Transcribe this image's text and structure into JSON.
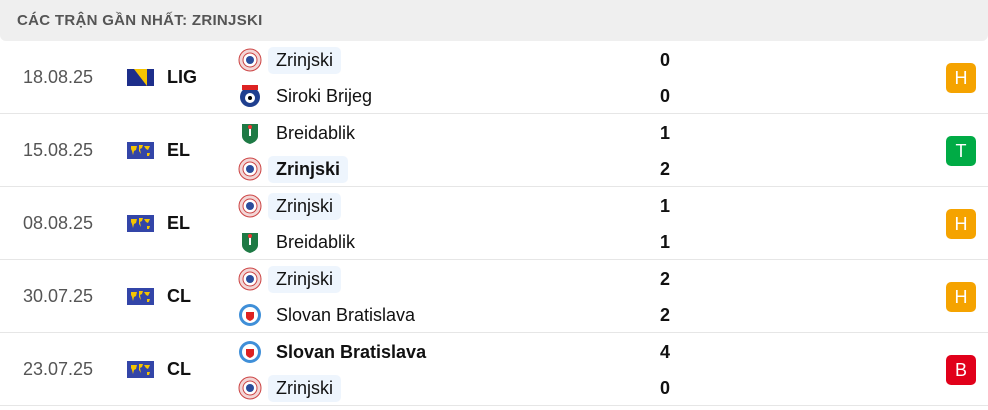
{
  "header": {
    "title": "CÁC TRẬN GẦN NHẤT: ZRINJSKI"
  },
  "colors": {
    "H": "#f5a300",
    "T": "#00ab45",
    "B": "#e1001a",
    "highlight": "#eef5fd"
  },
  "matches": [
    {
      "date": "18.08.25",
      "competition": "LIG",
      "flag": "bosnia-flag-icon",
      "home": {
        "name": "Zrinjski",
        "score": "0",
        "logo": "zrinjski-logo",
        "highlight": true,
        "bold": false
      },
      "away": {
        "name": "Siroki Brijeg",
        "score": "0",
        "logo": "siroki-brijeg-logo",
        "highlight": false,
        "bold": false
      },
      "result": "H"
    },
    {
      "date": "15.08.25",
      "competition": "EL",
      "flag": "world-flag-icon",
      "home": {
        "name": "Breidablik",
        "score": "1",
        "logo": "breidablik-logo",
        "highlight": false,
        "bold": false
      },
      "away": {
        "name": "Zrinjski",
        "score": "2",
        "logo": "zrinjski-logo",
        "highlight": true,
        "bold": true
      },
      "result": "T"
    },
    {
      "date": "08.08.25",
      "competition": "EL",
      "flag": "world-flag-icon",
      "home": {
        "name": "Zrinjski",
        "score": "1",
        "logo": "zrinjski-logo",
        "highlight": true,
        "bold": false
      },
      "away": {
        "name": "Breidablik",
        "score": "1",
        "logo": "breidablik-logo",
        "highlight": false,
        "bold": false
      },
      "result": "H"
    },
    {
      "date": "30.07.25",
      "competition": "CL",
      "flag": "world-flag-icon",
      "home": {
        "name": "Zrinjski",
        "score": "2",
        "logo": "zrinjski-logo",
        "highlight": true,
        "bold": false
      },
      "away": {
        "name": "Slovan Bratislava",
        "score": "2",
        "logo": "slovan-bratislava-logo",
        "highlight": false,
        "bold": false
      },
      "result": "H"
    },
    {
      "date": "23.07.25",
      "competition": "CL",
      "flag": "world-flag-icon",
      "home": {
        "name": "Slovan Bratislava",
        "score": "4",
        "logo": "slovan-bratislava-logo",
        "highlight": false,
        "bold": true
      },
      "away": {
        "name": "Zrinjski",
        "score": "0",
        "logo": "zrinjski-logo",
        "highlight": true,
        "bold": false
      },
      "result": "B"
    }
  ]
}
